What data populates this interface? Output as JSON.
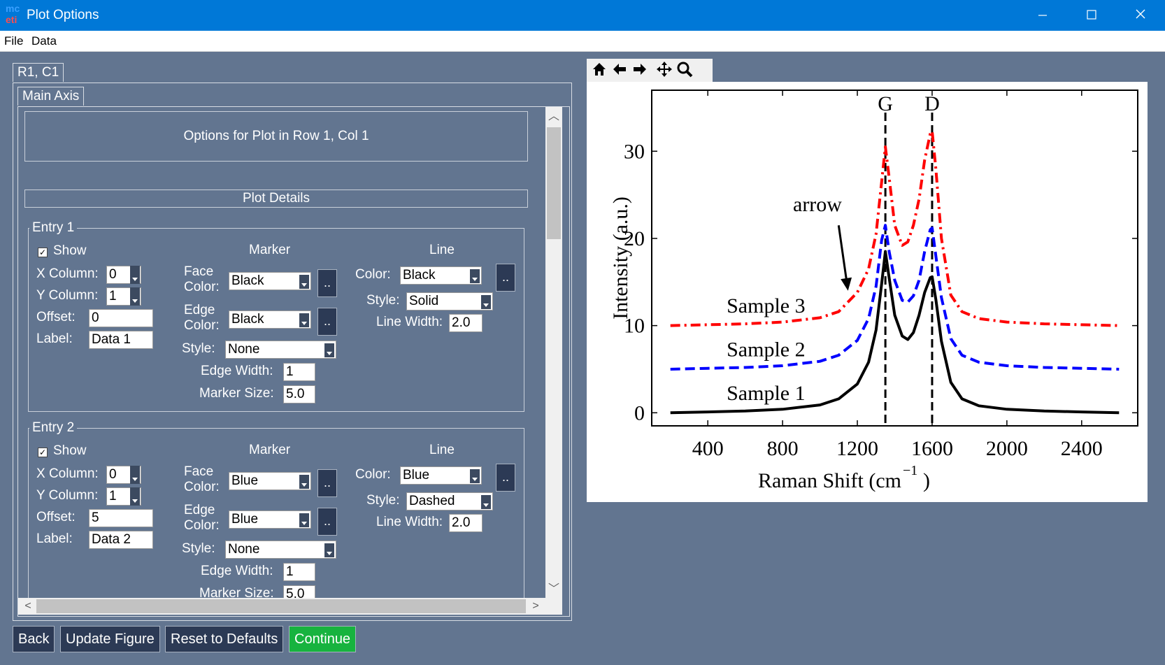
{
  "window": {
    "icon_top": "mc",
    "icon_bottom": "eti",
    "title": "Plot Options",
    "minimize_icon": "minimize-icon",
    "maximize_icon": "maximize-icon",
    "close_icon": "close-icon"
  },
  "menu": [
    "File",
    "Data"
  ],
  "tabs": {
    "outer": "R1, C1",
    "inner": "Main Axis"
  },
  "panel": {
    "heading": "Options for Plot in Row 1, Col 1",
    "section": "Plot Details"
  },
  "common_labels": {
    "show": "Show",
    "marker": "Marker",
    "line": "Line",
    "x_column": "X Column:",
    "y_column": "Y Column:",
    "offset": "Offset:",
    "label": "Label:",
    "face": "Face",
    "edge": "Edge",
    "color_suffix": "Color:",
    "style": "Style:",
    "edge_width": "Edge Width:",
    "marker_size": "Marker Size:",
    "line_color": "Color:",
    "line_style": "Style:",
    "line_width": "Line Width:",
    "dots": ".."
  },
  "entries": [
    {
      "title": "Entry 1",
      "show": true,
      "x_column": "0",
      "y_column": "1",
      "offset": "0",
      "label": "Data 1",
      "face_color": "Black",
      "edge_color": "Black",
      "marker_style": "None",
      "edge_width": "1",
      "marker_size": "5.0",
      "line_color": "Black",
      "line_style": "Solid",
      "line_width": "2.0"
    },
    {
      "title": "Entry 2",
      "show": true,
      "x_column": "0",
      "y_column": "1",
      "offset": "5",
      "label": "Data 2",
      "face_color": "Blue",
      "edge_color": "Blue",
      "marker_style": "None",
      "edge_width": "1",
      "marker_size": "5.0",
      "line_color": "Blue",
      "line_style": "Dashed",
      "line_width": "2.0"
    }
  ],
  "buttons": {
    "back": "Back",
    "update": "Update Figure",
    "reset": "Reset to Defaults",
    "continue": "Continue"
  },
  "toolbar": [
    "home-icon",
    "back-arrow-icon",
    "forward-arrow-icon",
    "pan-icon",
    "zoom-icon"
  ],
  "colors": {
    "accent": "#0078d7",
    "background": "#627590",
    "continue": "#17b33f",
    "button": "#2c3a55"
  },
  "chart_data": {
    "type": "line",
    "xlabel": "Raman Shift (cm",
    "xlabel_exponent": "−1",
    "xlabel_close": ")",
    "ylabel": "Intensity (a.u.)",
    "xlim": [
      100,
      2700
    ],
    "ylim": [
      -1.5,
      37
    ],
    "xticks": [
      400,
      800,
      1200,
      1600,
      2000,
      2400
    ],
    "yticks": [
      0,
      10,
      20,
      30
    ],
    "vlines": [
      {
        "x": 1350,
        "label": "G"
      },
      {
        "x": 1600,
        "label": "D"
      }
    ],
    "annotation": {
      "text": "arrow",
      "text_xy": [
        1050,
        24
      ],
      "arrow_to": [
        1150,
        14
      ]
    },
    "series": [
      {
        "name": "Sample 1",
        "color": "#000000",
        "dash": "solid",
        "x": [
          200,
          400,
          600,
          800,
          1000,
          1100,
          1200,
          1260,
          1300,
          1330,
          1350,
          1370,
          1400,
          1440,
          1470,
          1500,
          1530,
          1560,
          1590,
          1600,
          1620,
          1650,
          1700,
          1760,
          1850,
          2000,
          2200,
          2400,
          2600
        ],
        "y": [
          0,
          0.1,
          0.2,
          0.4,
          0.9,
          1.6,
          3.3,
          5.8,
          9.5,
          14.8,
          18.5,
          15.5,
          11.2,
          8.8,
          8.4,
          9.2,
          11.2,
          13.8,
          15.5,
          15.6,
          13.0,
          8.2,
          3.5,
          1.6,
          0.8,
          0.4,
          0.2,
          0.1,
          0
        ]
      },
      {
        "name": "Sample 2",
        "color": "#0000ff",
        "dash": "dashed",
        "x": [
          200,
          400,
          600,
          800,
          1000,
          1100,
          1200,
          1260,
          1300,
          1330,
          1350,
          1370,
          1400,
          1440,
          1470,
          1500,
          1530,
          1560,
          1590,
          1600,
          1620,
          1650,
          1700,
          1760,
          1850,
          2000,
          2200,
          2400,
          2600
        ],
        "y": [
          5,
          5.1,
          5.2,
          5.4,
          5.9,
          6.6,
          8.3,
          10.8,
          14.5,
          19.8,
          21.5,
          18.5,
          15.2,
          12.9,
          12.7,
          13.4,
          15.2,
          18.5,
          21.0,
          21.2,
          18.0,
          13.2,
          8.5,
          6.6,
          5.8,
          5.4,
          5.2,
          5.1,
          5
        ]
      },
      {
        "name": "Sample 3",
        "color": "#ff0000",
        "dash": "dashdot",
        "x": [
          200,
          400,
          600,
          800,
          1000,
          1100,
          1200,
          1260,
          1300,
          1330,
          1350,
          1370,
          1400,
          1440,
          1470,
          1500,
          1530,
          1560,
          1590,
          1600,
          1620,
          1650,
          1700,
          1760,
          1850,
          2000,
          2200,
          2400,
          2600
        ],
        "y": [
          10,
          10.1,
          10.2,
          10.4,
          10.9,
          11.6,
          13.8,
          16.5,
          20.5,
          26.5,
          30.5,
          27.0,
          21.5,
          19.2,
          19.6,
          21.5,
          24.5,
          29.0,
          32.0,
          32.3,
          28.0,
          20.0,
          13.5,
          11.6,
          10.8,
          10.4,
          10.2,
          10.1,
          10
        ]
      }
    ],
    "series_labels": [
      {
        "text": "Sample 1",
        "x": 800,
        "y": 1
      },
      {
        "text": "Sample 2",
        "x": 800,
        "y": 6
      },
      {
        "text": "Sample 3",
        "x": 800,
        "y": 11
      }
    ],
    "grid": false
  }
}
